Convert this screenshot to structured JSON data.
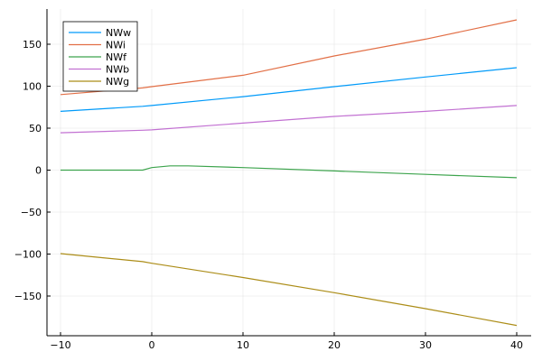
{
  "chart_data": {
    "type": "line",
    "title": "",
    "xlabel": "",
    "ylabel": "",
    "xlim": [
      -11.5,
      41.5
    ],
    "ylim": [
      -196,
      190
    ],
    "xticks": [
      -10,
      0,
      10,
      20,
      30,
      40
    ],
    "yticks": [
      -150,
      -100,
      -50,
      0,
      50,
      100,
      150
    ],
    "xtick_labels": [
      "−10",
      "0",
      "10",
      "20",
      "30",
      "40"
    ],
    "ytick_labels": [
      "−150",
      "−100",
      "−50",
      "0",
      "50",
      "100",
      "150"
    ],
    "grid": true,
    "legend_position": "top-left",
    "series": [
      {
        "name": "NWw",
        "color": "#009af9",
        "x": [
          -10,
          -1,
          0,
          10,
          20,
          30,
          40
        ],
        "y": [
          70,
          76,
          77,
          87.5,
          99.5,
          111,
          122
        ]
      },
      {
        "name": "NWi",
        "color": "#e26f46",
        "x": [
          -10,
          -1,
          0,
          10,
          20,
          30,
          40
        ],
        "y": [
          90,
          98,
          99.5,
          113,
          136,
          156,
          179
        ]
      },
      {
        "name": "NWf",
        "color": "#3da44d",
        "x": [
          -10,
          -1,
          0,
          2,
          4,
          10,
          20,
          30,
          40
        ],
        "y": [
          0,
          0,
          3,
          5,
          5,
          3,
          -1,
          -5,
          -9
        ]
      },
      {
        "name": "NWb",
        "color": "#c271d2",
        "x": [
          -10,
          -1,
          0,
          10,
          20,
          30,
          40
        ],
        "y": [
          44.5,
          47.5,
          48,
          56,
          64,
          70,
          77
        ]
      },
      {
        "name": "NWg",
        "color": "#ac8d18",
        "x": [
          -10,
          -1,
          0,
          10,
          20,
          30,
          40
        ],
        "y": [
          -99.5,
          -109,
          -111,
          -128,
          -146,
          -165,
          -185
        ]
      }
    ]
  }
}
